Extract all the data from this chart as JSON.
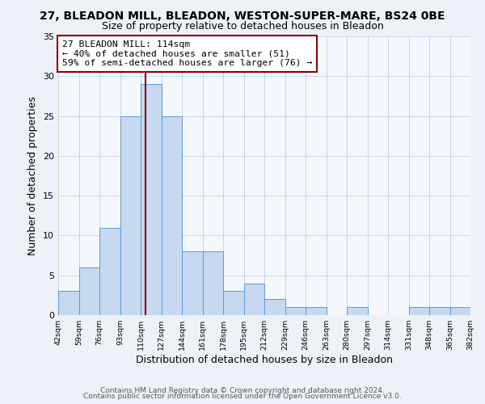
{
  "title": "27, BLEADON MILL, BLEADON, WESTON-SUPER-MARE, BS24 0BE",
  "subtitle": "Size of property relative to detached houses in Bleadon",
  "xlabel": "Distribution of detached houses by size in Bleadon",
  "ylabel": "Number of detached properties",
  "bin_edges": [
    42,
    59,
    76,
    93,
    110,
    127,
    144,
    161,
    178,
    195,
    212,
    229,
    246,
    263,
    280,
    297,
    314,
    331,
    348,
    365,
    382
  ],
  "counts": [
    3,
    6,
    11,
    25,
    29,
    25,
    8,
    8,
    3,
    4,
    2,
    1,
    1,
    0,
    1,
    0,
    0,
    1,
    1,
    1
  ],
  "bar_color": "#c6d9f0",
  "bar_edge_color": "#5b9bd5",
  "vline_x": 114,
  "vline_color": "#8b0000",
  "annotation_text": "27 BLEADON MILL: 114sqm\n← 40% of detached houses are smaller (51)\n59% of semi-detached houses are larger (76) →",
  "annotation_box_color": "#ffffff",
  "annotation_box_edge_color": "#8b0000",
  "ylim": [
    0,
    35
  ],
  "yticks": [
    0,
    5,
    10,
    15,
    20,
    25,
    30,
    35
  ],
  "footer1": "Contains HM Land Registry data © Crown copyright and database right 2024.",
  "footer2": "Contains public sector information licensed under the Open Government Licence v3.0.",
  "bg_color": "#eef2f8",
  "plot_bg_color": "#f4f8fd",
  "title_fontsize": 10,
  "subtitle_fontsize": 9
}
